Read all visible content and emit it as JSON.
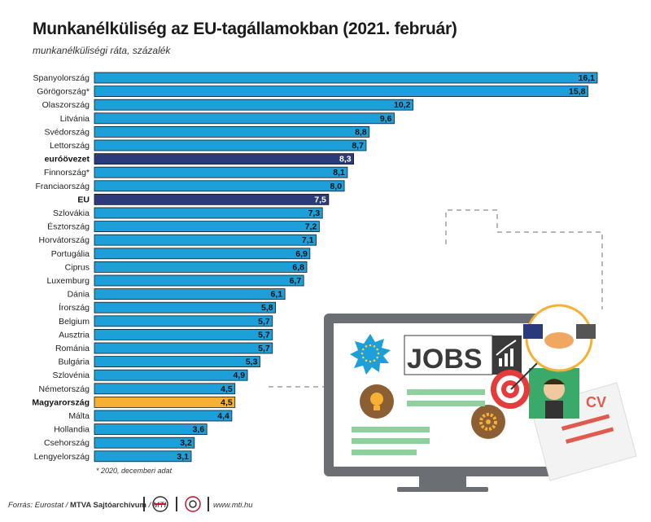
{
  "title": "Munkanélküliség az EU-tagállamokban (2021. február)",
  "subtitle": "munkanélküliségi ráta, százalék",
  "footnote": "* 2020, decemberi adat",
  "source": {
    "prefix": "Forrás: Eurostat / ",
    "bold": "MTVA Sajtóarchívum",
    "suffix": " / MTI"
  },
  "url": "www.mti.hu",
  "illustration": {
    "jobs_text": "JOBS",
    "cv_text": "CV"
  },
  "colors": {
    "bar": "#1d9fd9",
    "bar_stroke": "#1a1a1a",
    "highlight_dark": "#2b3a7a",
    "highlight_hu": "#f7b034",
    "monitor": "#6b6e73"
  },
  "chart_data": {
    "type": "bar",
    "orientation": "horizontal",
    "categories": [
      "Spanyolország",
      "Görögország*",
      "Olaszország",
      "Litvánia",
      "Svédország",
      "Lettország",
      "euróövezet",
      "Finnország*",
      "Franciaország",
      "EU",
      "Szlovákia",
      "Észtország",
      "Horvátország",
      "Portugália",
      "Ciprus",
      "Luxemburg",
      "Dánia",
      "Írország",
      "Belgium",
      "Ausztria",
      "Románia",
      "Bulgária",
      "Szlovénia",
      "Németország",
      "Magyarország",
      "Málta",
      "Hollandia",
      "Csehország",
      "Lengyelország"
    ],
    "values": [
      16.1,
      15.8,
      10.2,
      9.6,
      8.8,
      8.7,
      8.3,
      8.1,
      8.0,
      7.5,
      7.3,
      7.2,
      7.1,
      6.9,
      6.8,
      6.7,
      6.1,
      5.8,
      5.7,
      5.7,
      5.7,
      5.3,
      4.9,
      4.5,
      4.5,
      4.4,
      3.6,
      3.2,
      3.1
    ],
    "value_labels": [
      "16,1",
      "15,8",
      "10,2",
      "9,6",
      "8,8",
      "8,7",
      "8,3",
      "8,1",
      "8,0",
      "7,5",
      "7,3",
      "7,2",
      "7,1",
      "6,9",
      "6,8",
      "6,7",
      "6,1",
      "5,8",
      "5,7",
      "5,7",
      "5,7",
      "5,3",
      "4,9",
      "4,5",
      "4,5",
      "4,4",
      "3,6",
      "3,2",
      "3,1"
    ],
    "highlight": {
      "euróövezet": "dark",
      "EU": "dark",
      "Magyarország": "yellow"
    },
    "bold_categories": [
      "euróövezet",
      "EU",
      "Magyarország"
    ],
    "unit": "százalék",
    "xlim": [
      0,
      16.1
    ]
  }
}
